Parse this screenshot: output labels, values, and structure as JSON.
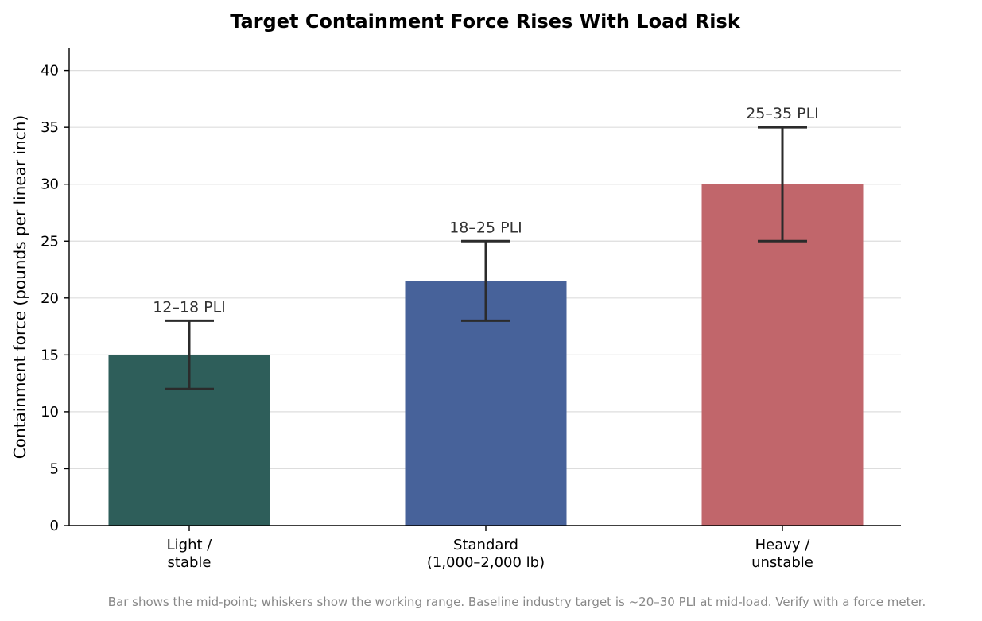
{
  "chart_data": {
    "type": "bar",
    "title": "Target Containment Force Rises With Load Risk",
    "ylabel": "Containment force (pounds per linear inch)",
    "xlabel": "",
    "ylim": [
      0,
      42
    ],
    "yticks": [
      0,
      5,
      10,
      15,
      20,
      25,
      30,
      35,
      40
    ],
    "grid": "horizontal",
    "categories": [
      [
        "Light /",
        "stable"
      ],
      [
        "Standard",
        "(1,000–2,000 lb)"
      ],
      [
        "Heavy /",
        "unstable"
      ]
    ],
    "values": [
      15,
      21.5,
      30
    ],
    "ranges": [
      [
        12,
        18
      ],
      [
        18,
        25
      ],
      [
        25,
        35
      ]
    ],
    "data_labels": [
      "12–18 PLI",
      "18–25 PLI",
      "25–35 PLI"
    ],
    "colors": [
      "#2e5e5a",
      "#47629a",
      "#c1666b"
    ],
    "footnote": "Bar shows the mid-point; whiskers show the working range. Baseline industry target is ~20–30 PLI at mid-load. Verify with a force meter."
  }
}
